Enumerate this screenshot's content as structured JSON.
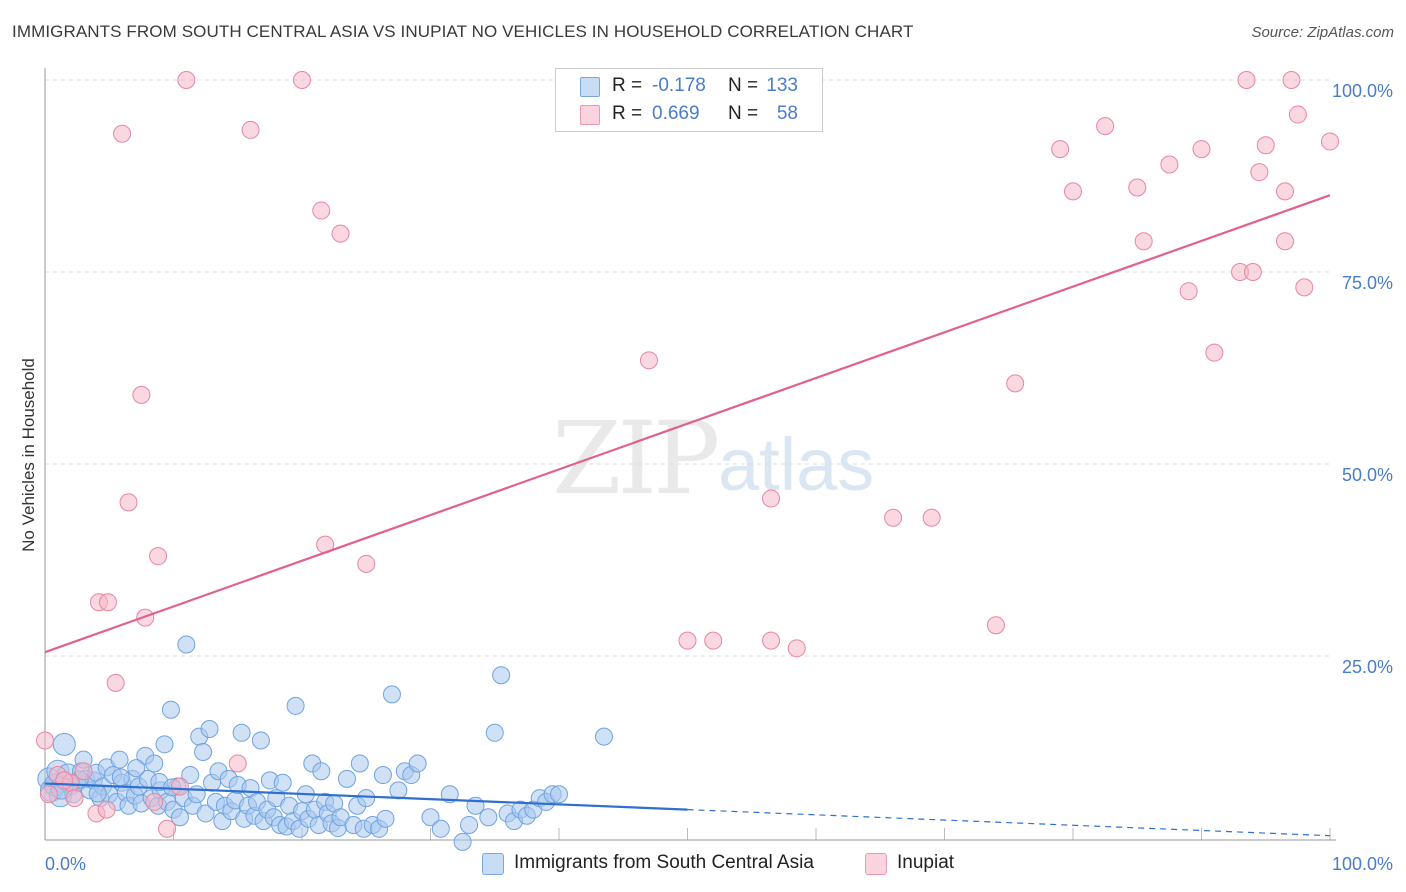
{
  "header": {
    "title": "IMMIGRANTS FROM SOUTH CENTRAL ASIA VS INUPIAT NO VEHICLES IN HOUSEHOLD CORRELATION CHART",
    "source": "Source: ZipAtlas.com"
  },
  "watermark": {
    "zip": "ZIP",
    "atlas": "atlas"
  },
  "legend": {
    "rows": [
      {
        "r_label": "R =",
        "r_value": "-0.178",
        "n_label": "N =",
        "n_value": "133",
        "color": "#a9c8ee"
      },
      {
        "r_label": "R =",
        "r_value": "0.669",
        "n_label": "N =",
        "n_value": "58",
        "color": "#f5b8c8"
      }
    ]
  },
  "bottom_legend": {
    "items": [
      {
        "label": "Immigrants from South Central Asia",
        "color": "#a9c8ee"
      },
      {
        "label": "Inupiat",
        "color": "#f5b8c8"
      }
    ]
  },
  "chart_data": {
    "type": "scatter",
    "title": "IMMIGRANTS FROM SOUTH CENTRAL ASIA VS INUPIAT NO VEHICLES IN HOUSEHOLD CORRELATION CHART",
    "xlabel": "",
    "ylabel": "No Vehicles in Household",
    "xlim": [
      0,
      100
    ],
    "ylim": [
      0,
      100
    ],
    "x_tick_labels": [
      "0.0%",
      "100.0%"
    ],
    "y_ticks": [
      25,
      50,
      75,
      100
    ],
    "y_tick_labels": [
      "25.0%",
      "50.0%",
      "75.0%",
      "100.0%"
    ],
    "grid": true,
    "series": [
      {
        "name": "Immigrants from South Central Asia",
        "color": "#6fa3e0",
        "fill": "#a9c8ee",
        "trend": {
          "x": [
            0,
            50
          ],
          "y": [
            8.4,
            5.0
          ],
          "dashed_to": [
            100,
            1.6
          ],
          "color": "#2e6fd0"
        },
        "points": [
          [
            0.3,
            9.0
          ],
          [
            0.5,
            7.5
          ],
          [
            0.8,
            8.2
          ],
          [
            1.0,
            10.0
          ],
          [
            1.2,
            6.8
          ],
          [
            1.5,
            13.5
          ],
          [
            1.8,
            9.5
          ],
          [
            2.0,
            8.0
          ],
          [
            2.2,
            7.0
          ],
          [
            2.5,
            8.5
          ],
          [
            2.8,
            10.0
          ],
          [
            3.0,
            11.5
          ],
          [
            3.2,
            9.0
          ],
          [
            3.5,
            7.5
          ],
          [
            3.8,
            8.8
          ],
          [
            4.0,
            9.8
          ],
          [
            4.3,
            6.5
          ],
          [
            4.5,
            8.0
          ],
          [
            4.8,
            10.5
          ],
          [
            5.0,
            7.0
          ],
          [
            5.3,
            9.5
          ],
          [
            5.6,
            6.0
          ],
          [
            5.8,
            11.5
          ],
          [
            6.0,
            8.5
          ],
          [
            6.3,
            7.2
          ],
          [
            6.5,
            5.5
          ],
          [
            6.8,
            9.0
          ],
          [
            7.0,
            6.8
          ],
          [
            7.3,
            8.0
          ],
          [
            7.5,
            5.8
          ],
          [
            7.8,
            12.0
          ],
          [
            8.0,
            9.0
          ],
          [
            8.3,
            6.5
          ],
          [
            8.5,
            11.0
          ],
          [
            8.8,
            5.5
          ],
          [
            9.0,
            7.5
          ],
          [
            9.3,
            13.5
          ],
          [
            9.5,
            6.0
          ],
          [
            9.8,
            18.0
          ],
          [
            10.0,
            5.0
          ],
          [
            10.3,
            8.0
          ],
          [
            10.5,
            4.0
          ],
          [
            10.8,
            6.5
          ],
          [
            11.0,
            26.5
          ],
          [
            11.3,
            9.5
          ],
          [
            11.5,
            5.5
          ],
          [
            11.8,
            7.0
          ],
          [
            12.0,
            14.5
          ],
          [
            12.3,
            12.5
          ],
          [
            12.5,
            4.5
          ],
          [
            12.8,
            15.5
          ],
          [
            13.0,
            8.5
          ],
          [
            13.3,
            6.0
          ],
          [
            13.5,
            10.0
          ],
          [
            13.8,
            3.5
          ],
          [
            14.0,
            5.5
          ],
          [
            14.3,
            9.0
          ],
          [
            14.5,
            4.8
          ],
          [
            14.8,
            6.2
          ],
          [
            15.0,
            8.2
          ],
          [
            15.3,
            15.0
          ],
          [
            15.5,
            3.8
          ],
          [
            15.8,
            5.5
          ],
          [
            16.0,
            7.8
          ],
          [
            16.3,
            4.2
          ],
          [
            16.5,
            6.0
          ],
          [
            16.8,
            14.0
          ],
          [
            17.0,
            3.5
          ],
          [
            17.3,
            5.0
          ],
          [
            17.5,
            8.8
          ],
          [
            17.8,
            4.0
          ],
          [
            18.0,
            6.5
          ],
          [
            18.3,
            3.0
          ],
          [
            18.5,
            8.5
          ],
          [
            18.8,
            2.8
          ],
          [
            19.0,
            5.5
          ],
          [
            19.3,
            3.5
          ],
          [
            19.5,
            18.5
          ],
          [
            19.8,
            2.5
          ],
          [
            20.0,
            4.8
          ],
          [
            20.3,
            7.0
          ],
          [
            20.5,
            3.8
          ],
          [
            20.8,
            11.0
          ],
          [
            21.0,
            5.0
          ],
          [
            21.3,
            3.0
          ],
          [
            21.5,
            10.0
          ],
          [
            21.8,
            6.0
          ],
          [
            22.0,
            4.5
          ],
          [
            22.3,
            3.2
          ],
          [
            22.5,
            5.8
          ],
          [
            22.8,
            2.6
          ],
          [
            23.0,
            4.0
          ],
          [
            23.5,
            9.0
          ],
          [
            24.0,
            3.0
          ],
          [
            24.3,
            5.5
          ],
          [
            24.5,
            11.0
          ],
          [
            24.8,
            2.5
          ],
          [
            25.0,
            6.5
          ],
          [
            25.5,
            3.0
          ],
          [
            26.0,
            2.5
          ],
          [
            26.3,
            9.5
          ],
          [
            26.5,
            3.8
          ],
          [
            27.0,
            20.0
          ],
          [
            27.5,
            7.5
          ],
          [
            28.0,
            10.0
          ],
          [
            28.5,
            9.5
          ],
          [
            29.0,
            11.0
          ],
          [
            30.0,
            4.0
          ],
          [
            30.8,
            2.5
          ],
          [
            31.5,
            7.0
          ],
          [
            32.5,
            0.8
          ],
          [
            33.0,
            3.0
          ],
          [
            33.5,
            5.5
          ],
          [
            34.5,
            4.0
          ],
          [
            35.0,
            15.0
          ],
          [
            35.5,
            22.5
          ],
          [
            36.0,
            4.5
          ],
          [
            36.5,
            3.5
          ],
          [
            37.0,
            5.0
          ],
          [
            37.5,
            4.2
          ],
          [
            38.0,
            5.0
          ],
          [
            38.5,
            6.5
          ],
          [
            39.0,
            6.0
          ],
          [
            39.5,
            7.0
          ],
          [
            40.0,
            7.0
          ],
          [
            43.5,
            14.5
          ],
          [
            1.3,
            7.8
          ],
          [
            2.7,
            8.9
          ],
          [
            4.1,
            7.1
          ],
          [
            5.9,
            9.2
          ],
          [
            7.1,
            10.4
          ],
          [
            8.9,
            8.6
          ],
          [
            9.9,
            7.9
          ]
        ]
      },
      {
        "name": "Inupiat",
        "color": "#e8869f",
        "fill": "#f5b8c8",
        "trend": {
          "x": [
            0,
            100
          ],
          "y": [
            25.5,
            85.0
          ],
          "color": "#e06090"
        },
        "points": [
          [
            0.0,
            14.0
          ],
          [
            0.3,
            7.0
          ],
          [
            1.0,
            9.5
          ],
          [
            2.0,
            8.5
          ],
          [
            2.3,
            6.5
          ],
          [
            3.0,
            10.0
          ],
          [
            4.0,
            4.5
          ],
          [
            4.2,
            32.0
          ],
          [
            4.8,
            5.0
          ],
          [
            4.9,
            32.0
          ],
          [
            5.5,
            21.5
          ],
          [
            6.0,
            93.0
          ],
          [
            6.5,
            45.0
          ],
          [
            7.5,
            59.0
          ],
          [
            7.8,
            30.0
          ],
          [
            8.5,
            6.0
          ],
          [
            8.8,
            38.0
          ],
          [
            9.5,
            2.5
          ],
          [
            10.5,
            8.0
          ],
          [
            11.0,
            100.0
          ],
          [
            15.0,
            11.0
          ],
          [
            16.0,
            93.5
          ],
          [
            20.0,
            100.0
          ],
          [
            21.5,
            83.0
          ],
          [
            21.8,
            39.5
          ],
          [
            23.0,
            80.0
          ],
          [
            25.0,
            37.0
          ],
          [
            47.0,
            63.5
          ],
          [
            50.0,
            27.0
          ],
          [
            52.0,
            27.0
          ],
          [
            56.5,
            45.5
          ],
          [
            56.5,
            27.0
          ],
          [
            58.5,
            26.0
          ],
          [
            66.0,
            43.0
          ],
          [
            69.0,
            43.0
          ],
          [
            74.0,
            29.0
          ],
          [
            75.5,
            60.5
          ],
          [
            79.0,
            91.0
          ],
          [
            80.0,
            85.5
          ],
          [
            82.5,
            94.0
          ],
          [
            85.0,
            86.0
          ],
          [
            85.5,
            79.0
          ],
          [
            87.5,
            89.0
          ],
          [
            89.0,
            72.5
          ],
          [
            90.0,
            91.0
          ],
          [
            91.0,
            64.5
          ],
          [
            93.0,
            75.0
          ],
          [
            93.5,
            100.0
          ],
          [
            94.0,
            75.0
          ],
          [
            94.5,
            88.0
          ],
          [
            95.0,
            91.5
          ],
          [
            96.5,
            79.0
          ],
          [
            96.5,
            85.5
          ],
          [
            97.0,
            100.0
          ],
          [
            97.5,
            95.5
          ],
          [
            98.0,
            73.0
          ],
          [
            100.0,
            92.0
          ],
          [
            1.5,
            8.8
          ]
        ]
      }
    ]
  }
}
